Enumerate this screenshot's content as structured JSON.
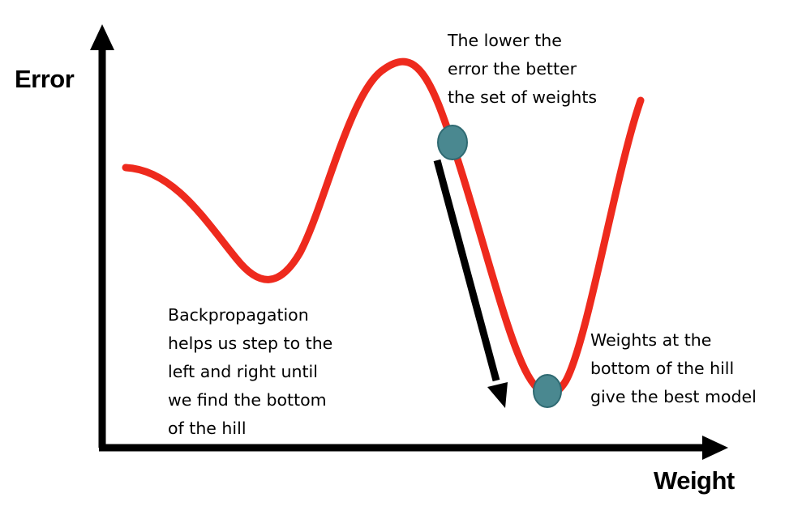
{
  "axes": {
    "y_label": "Error",
    "x_label": "Weight"
  },
  "annotations": {
    "lower_error": [
      "The lower the",
      "error the better",
      "the set of weights"
    ],
    "backprop": [
      "Backpropagation",
      "helps us step to the",
      "left and right until",
      "we find the bottom",
      "of the hill"
    ],
    "best_weights": [
      "Weights at the",
      "bottom of the hill",
      "give the best model"
    ]
  },
  "colors": {
    "curve": "#ee2a1d",
    "axis": "#000000",
    "marker": "#4a8890",
    "step_arrow": "#000000"
  }
}
